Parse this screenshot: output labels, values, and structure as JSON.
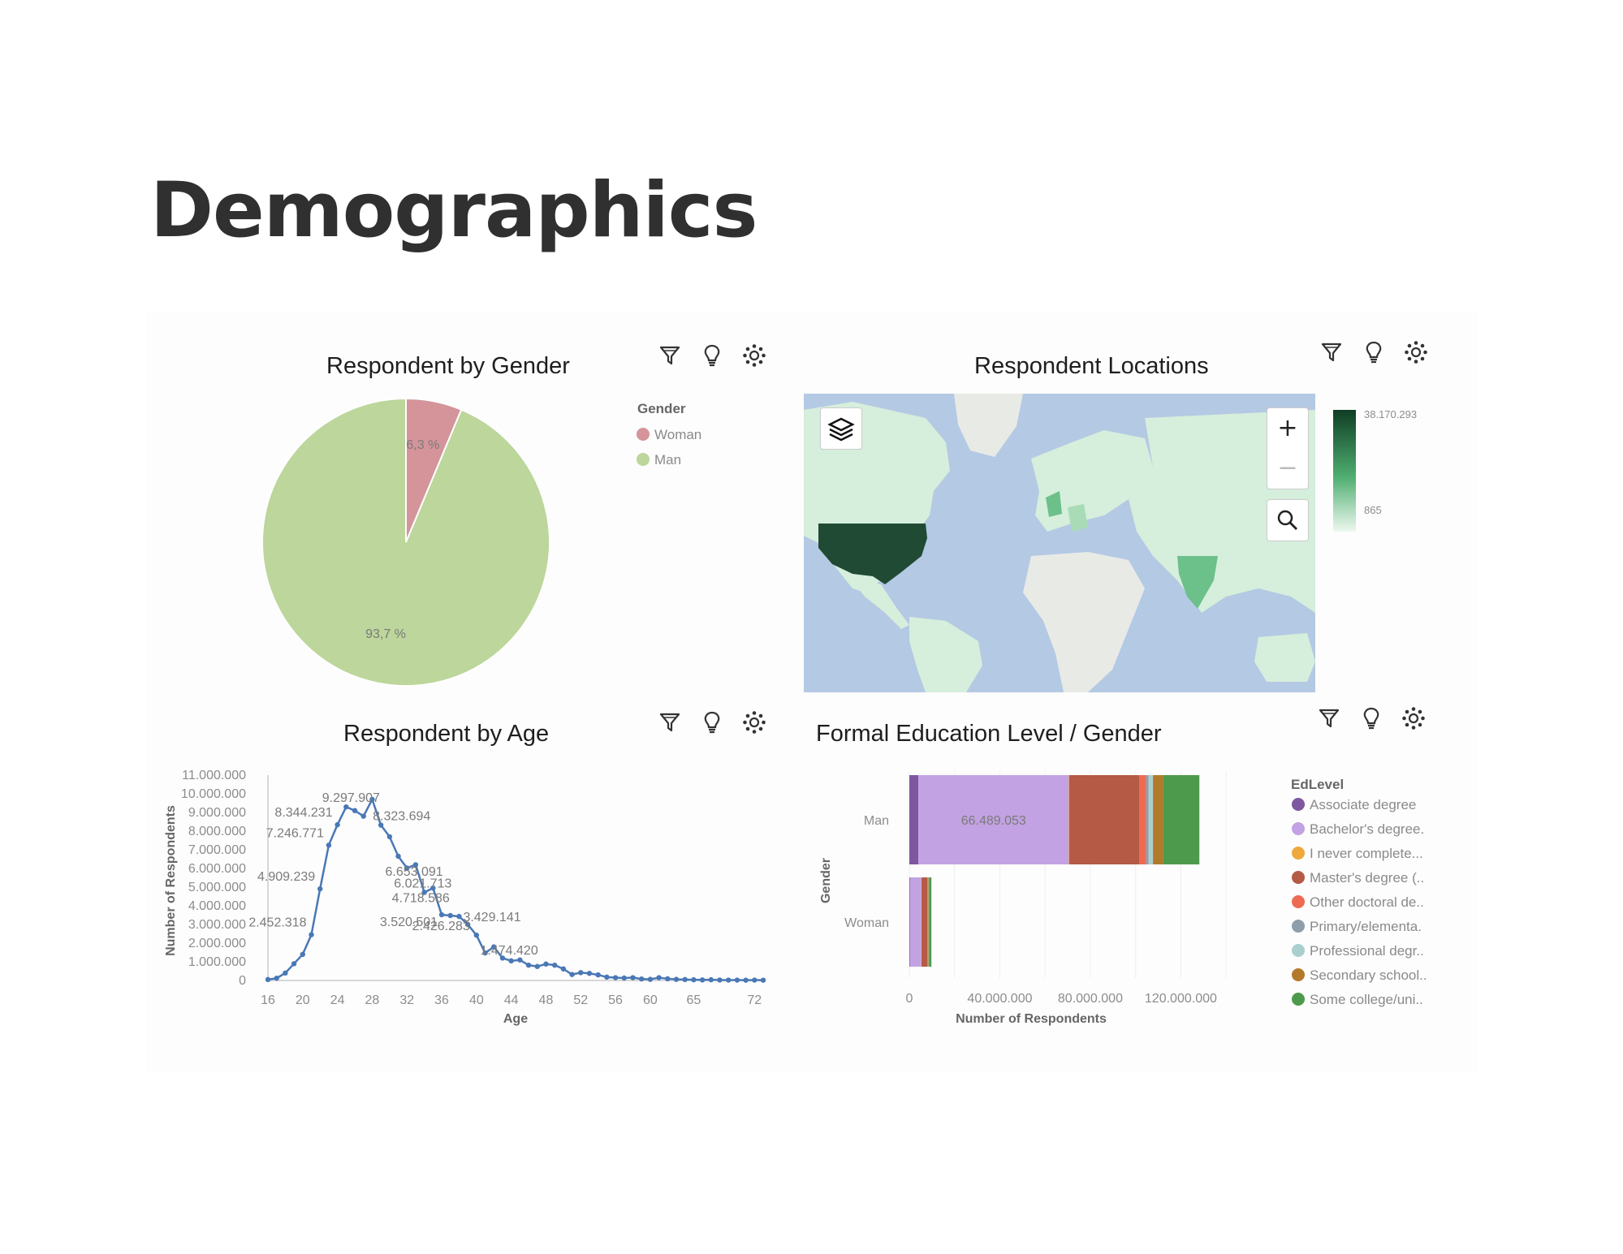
{
  "page": {
    "title": "Demographics"
  },
  "icons": {
    "filter": "filter-icon",
    "insight": "lightbulb-icon",
    "settings": "settings-icon",
    "layers": "layers-icon",
    "zoom_in": "plus-icon",
    "zoom_out": "minus-icon",
    "search": "search-icon"
  },
  "panels": {
    "gender": {
      "title": "Respondent by Gender"
    },
    "locations": {
      "title": "Respondent Locations"
    },
    "age": {
      "title": "Respondent by Age"
    },
    "education": {
      "title": "Formal Education Level / Gender"
    }
  },
  "map": {
    "legend_max": "38.170.293",
    "legend_min": "865",
    "zoom_in_label": "+",
    "zoom_out_label": "−",
    "colors": {
      "water": "#b4c9e3",
      "land": "#e8eae6",
      "light": "#d6eedc",
      "mid": "#a9dcb6",
      "strong": "#6cc08a",
      "max": "#204a34"
    }
  },
  "chart_data": [
    {
      "type": "pie",
      "title": "Respondent by Gender",
      "legend_title": "Gender",
      "legend_position": "right",
      "categories": [
        "Woman",
        "Man"
      ],
      "values": [
        6.3,
        93.7
      ],
      "labels": [
        "6,3 %",
        "93,7 %"
      ],
      "colors": [
        "#d4949a",
        "#bcd69b"
      ]
    },
    {
      "type": "line",
      "title": "Respondent by Age",
      "xlabel": "Age",
      "ylabel": "Number of Respondents",
      "ylim": [
        0,
        11000000
      ],
      "xlim": [
        16,
        73
      ],
      "x_ticks": [
        "16",
        "20",
        "24",
        "28",
        "32",
        "36",
        "40",
        "44",
        "48",
        "52",
        "56",
        "60",
        "65",
        "72"
      ],
      "y_ticks": [
        "0",
        "1.000.000",
        "2.000.000",
        "3.000.000",
        "4.000.000",
        "5.000.000",
        "6.000.000",
        "7.000.000",
        "8.000.000",
        "9.000.000",
        "10.000.000",
        "11.000.000"
      ],
      "color": "#4a78b5",
      "x": [
        16,
        17,
        18,
        19,
        20,
        21,
        22,
        23,
        24,
        25,
        26,
        27,
        28,
        29,
        30,
        31,
        32,
        33,
        34,
        35,
        36,
        37,
        38,
        39,
        40,
        41,
        42,
        43,
        44,
        45,
        46,
        47,
        48,
        49,
        50,
        51,
        52,
        53,
        54,
        55,
        56,
        57,
        58,
        59,
        60,
        61,
        62,
        63,
        64,
        65,
        66,
        67,
        68,
        69,
        70,
        71,
        72,
        73
      ],
      "values": [
        50000,
        120000,
        400000,
        900000,
        1400000,
        2452318,
        4909239,
        7246771,
        8344231,
        9297907,
        9100000,
        8800000,
        9700000,
        8323694,
        7700000,
        6653091,
        6021713,
        6200000,
        4718586,
        4950000,
        3520501,
        3480000,
        3429141,
        3000000,
        2426283,
        1474420,
        1800000,
        1200000,
        1050000,
        1100000,
        820000,
        750000,
        880000,
        820000,
        620000,
        320000,
        420000,
        380000,
        300000,
        180000,
        150000,
        130000,
        150000,
        80000,
        60000,
        150000,
        90000,
        60000,
        50000,
        40000,
        30000,
        40000,
        25000,
        20000,
        20000,
        15000,
        20000,
        15000
      ],
      "data_labels": [
        {
          "x": 21,
          "label": "2.452.318"
        },
        {
          "x": 22,
          "label": "4.909.239"
        },
        {
          "x": 23,
          "label": "7.246.771"
        },
        {
          "x": 24,
          "label": "8.344.231"
        },
        {
          "x": 25,
          "label": "9.297.907"
        },
        {
          "x": 29,
          "label": "8.323.694"
        },
        {
          "x": 31,
          "label": "6.653.091"
        },
        {
          "x": 32,
          "label": "6.021.713"
        },
        {
          "x": 34,
          "label": "4.718.586"
        },
        {
          "x": 36,
          "label": "3.520.501"
        },
        {
          "x": 38,
          "label": "3.429.141"
        },
        {
          "x": 40,
          "label": "2.426.283"
        },
        {
          "x": 41,
          "label": "1.474.420"
        }
      ]
    },
    {
      "type": "bar",
      "orientation": "horizontal",
      "stacked": true,
      "title": "Formal Education Level / Gender",
      "xlabel": "Number of Respondents",
      "ylabel": "Gender",
      "categories": [
        "Man",
        "Woman"
      ],
      "xlim": [
        0,
        150000000
      ],
      "x_ticks": [
        "0",
        "40.000.000",
        "80.000.000",
        "120.000.000"
      ],
      "legend_title": "EdLevel",
      "legend_position": "right",
      "series": [
        {
          "name": "Associate degree",
          "legend_label": "Associate degree",
          "color": "#7e57a0",
          "values": [
            4000000,
            300000
          ]
        },
        {
          "name": "Bachelor's degree",
          "legend_label": "Bachelor's degree.",
          "color": "#c2a2e2",
          "values": [
            66489053,
            5000000
          ]
        },
        {
          "name": "I never completed",
          "legend_label": "I never complete...",
          "color": "#efa83c",
          "values": [
            200000,
            100000
          ]
        },
        {
          "name": "Master's degree",
          "legend_label": "Master's degree (..",
          "color": "#b55a45",
          "values": [
            31000000,
            2500000
          ]
        },
        {
          "name": "Other doctoral degree",
          "legend_label": "Other doctoral de..",
          "color": "#ee6a53",
          "values": [
            3000000,
            300000
          ]
        },
        {
          "name": "Primary/elementary",
          "legend_label": "Primary/elementa.",
          "color": "#8e9eaa",
          "values": [
            1000000,
            100000
          ]
        },
        {
          "name": "Professional degree",
          "legend_label": "Professional degr..",
          "color": "#aacfcf",
          "values": [
            2000000,
            150000
          ]
        },
        {
          "name": "Secondary school",
          "legend_label": "Secondary school..",
          "color": "#b27a2a",
          "values": [
            4500000,
            300000
          ]
        },
        {
          "name": "Some college/university",
          "legend_label": "Some college/uni..",
          "color": "#4e9a4c",
          "values": [
            16000000,
            1000000
          ]
        }
      ],
      "data_labels": [
        {
          "category": "Man",
          "series": "Bachelor's degree",
          "label": "66.489.053"
        }
      ]
    }
  ]
}
